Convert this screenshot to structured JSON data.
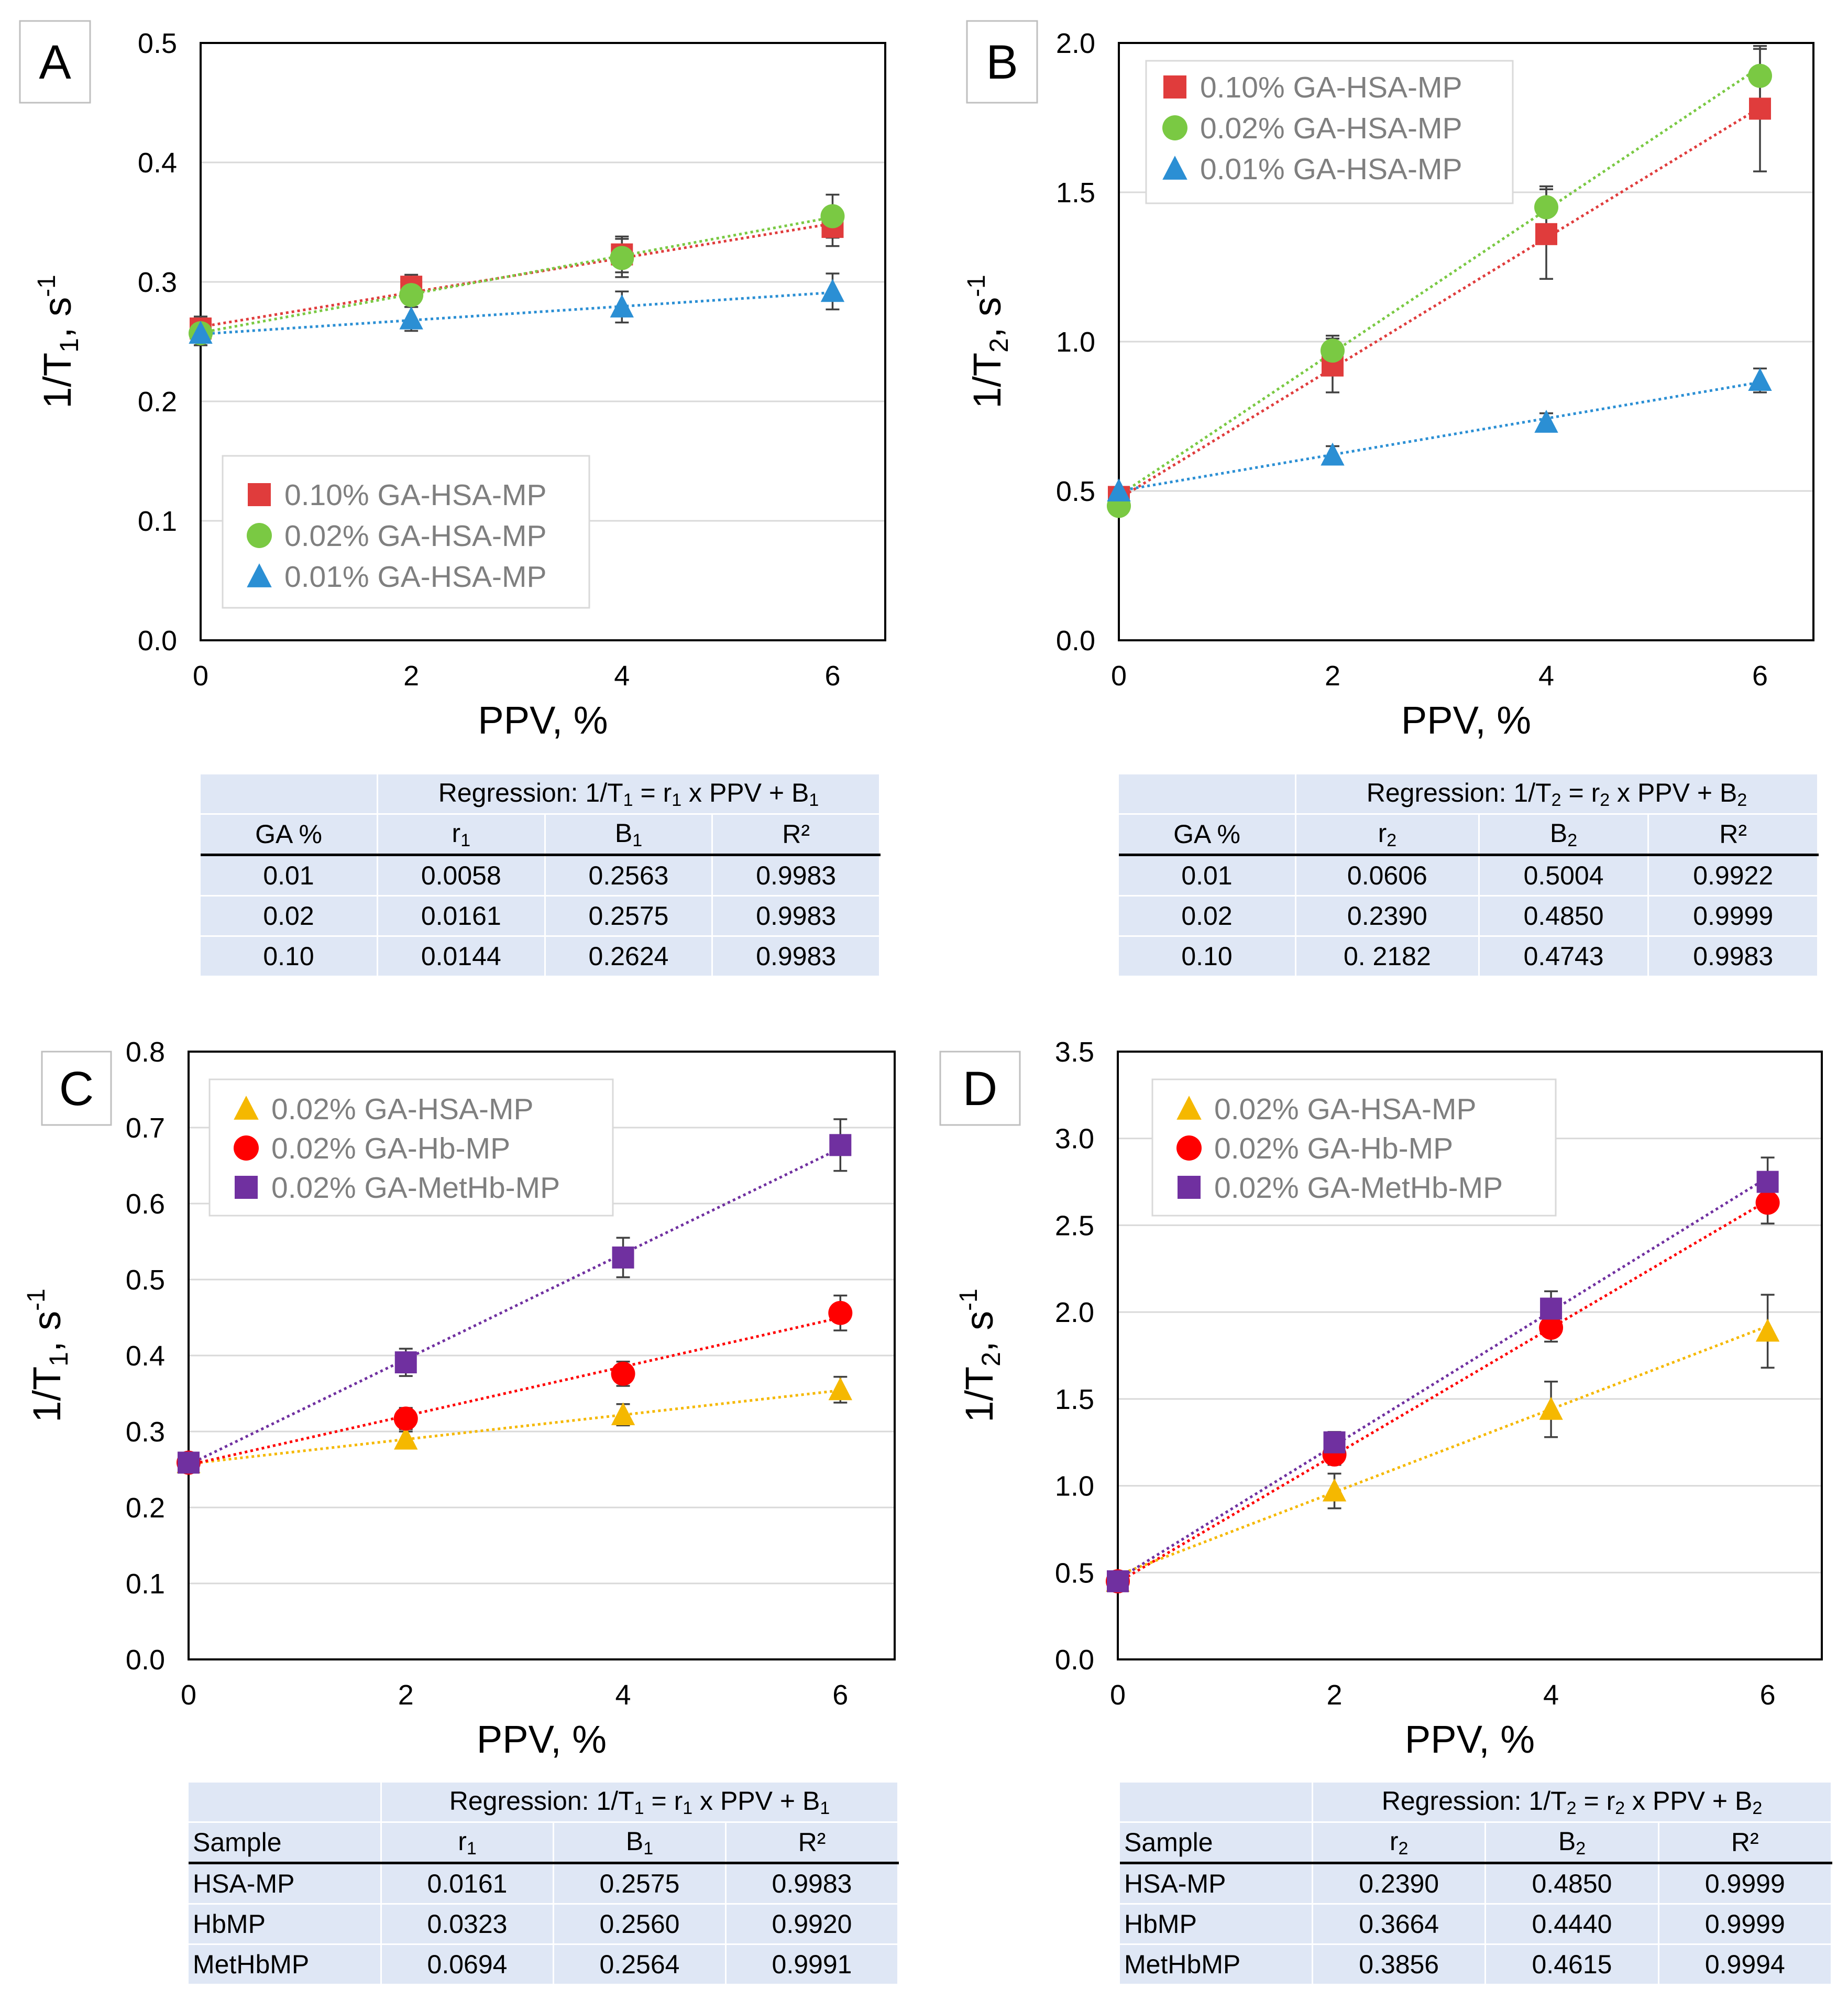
{
  "charts": [
    {
      "panel": "A",
      "legend_position": "bottom-left",
      "error_bars": true,
      "chart_data": {
        "type": "scatter",
        "title": "",
        "xlabel": "PPV, %",
        "ylabel": "1/T1, s-1",
        "ylabel_parts": [
          "1/T",
          "1",
          ", s",
          "-1"
        ],
        "xlim": [
          0,
          6.5
        ],
        "ylim": [
          0,
          0.5
        ],
        "x_ticks": [
          0,
          2,
          4,
          6
        ],
        "y_ticks": [
          "0.0",
          "0.1",
          "0.2",
          "0.3",
          "0.4",
          "0.5"
        ],
        "x": [
          0,
          2,
          4,
          6
        ],
        "series": [
          {
            "name": "0.10% GA-HSA-MP",
            "marker": "square",
            "color": "#e03c3c",
            "values": [
              0.261,
              0.296,
              0.323,
              0.346
            ],
            "errors": [
              0.01,
              0.01,
              0.015,
              0.016
            ],
            "fit": {
              "slope": 0.0144,
              "intercept": 0.2624
            }
          },
          {
            "name": "0.02% GA-HSA-MP",
            "marker": "circle",
            "color": "#7ac943",
            "values": [
              0.257,
              0.289,
              0.32,
              0.355
            ],
            "errors": [
              0.01,
              0.01,
              0.016,
              0.018
            ],
            "fit": {
              "slope": 0.0161,
              "intercept": 0.2575
            }
          },
          {
            "name": "0.01% GA-HSA-MP",
            "marker": "triangle",
            "color": "#2b8fd4",
            "values": [
              0.257,
              0.269,
              0.279,
              0.292
            ],
            "errors": [
              0.01,
              0.01,
              0.013,
              0.015
            ],
            "fit": {
              "slope": 0.0058,
              "intercept": 0.2563
            }
          }
        ]
      }
    },
    {
      "panel": "B",
      "legend_position": "top-left",
      "error_bars": true,
      "chart_data": {
        "type": "scatter",
        "title": "",
        "xlabel": "PPV, %",
        "ylabel": "1/T2, s-1",
        "ylabel_parts": [
          "1/T",
          "2",
          ", s",
          "-1"
        ],
        "xlim": [
          0,
          6.5
        ],
        "ylim": [
          0,
          2.0
        ],
        "x_ticks": [
          0,
          2,
          4,
          6
        ],
        "y_ticks": [
          "0.0",
          "0.5",
          "1.0",
          "1.5",
          "2.0"
        ],
        "x": [
          0,
          2,
          4,
          6
        ],
        "series": [
          {
            "name": "0.10% GA-HSA-MP",
            "marker": "square",
            "color": "#e03c3c",
            "values": [
              0.48,
              0.92,
              1.36,
              1.78
            ],
            "errors": [
              0.02,
              0.09,
              0.15,
              0.21
            ],
            "fit": {
              "slope": 0.2182,
              "intercept": 0.4743
            }
          },
          {
            "name": "0.02% GA-HSA-MP",
            "marker": "circle",
            "color": "#7ac943",
            "values": [
              0.45,
              0.97,
              1.45,
              1.89
            ],
            "errors": [
              0.02,
              0.05,
              0.07,
              0.09
            ],
            "fit": {
              "slope": 0.239,
              "intercept": 0.485
            }
          },
          {
            "name": "0.01% GA-HSA-MP",
            "marker": "triangle",
            "color": "#2b8fd4",
            "values": [
              0.5,
              0.62,
              0.73,
              0.87
            ],
            "errors": [
              0.01,
              0.03,
              0.03,
              0.04
            ],
            "fit": {
              "slope": 0.0606,
              "intercept": 0.5004
            }
          }
        ]
      }
    },
    {
      "panel": "C",
      "legend_position": "top-left",
      "error_bars": true,
      "chart_data": {
        "type": "scatter",
        "title": "",
        "xlabel": "PPV, %",
        "ylabel": "1/T1, s-1",
        "ylabel_parts": [
          "1/T",
          "1",
          ", s",
          "-1"
        ],
        "xlim": [
          0,
          6.5
        ],
        "ylim": [
          0,
          0.8
        ],
        "x_ticks": [
          0,
          2,
          4,
          6
        ],
        "y_ticks": [
          "0.0",
          "0.1",
          "0.2",
          "0.3",
          "0.4",
          "0.5",
          "0.6",
          "0.7",
          "0.8"
        ],
        "x": [
          0,
          2,
          4,
          6
        ],
        "series": [
          {
            "name": "0.02% GA-HSA-MP",
            "marker": "triangle",
            "color": "#f5b800",
            "values": [
              0.259,
              0.29,
              0.322,
              0.355
            ],
            "errors": [
              0.01,
              0.01,
              0.014,
              0.017
            ],
            "fit": {
              "slope": 0.0161,
              "intercept": 0.2575
            }
          },
          {
            "name": "0.02% GA-Hb-MP",
            "marker": "circle",
            "color": "#ff0000",
            "values": [
              0.259,
              0.317,
              0.376,
              0.456
            ],
            "errors": [
              0.01,
              0.014,
              0.016,
              0.023
            ],
            "fit": {
              "slope": 0.0323,
              "intercept": 0.256
            }
          },
          {
            "name": "0.02% GA-MetHb-MP",
            "marker": "square",
            "color": "#7030a0",
            "values": [
              0.259,
              0.391,
              0.529,
              0.677
            ],
            "errors": [
              0.01,
              0.018,
              0.026,
              0.034
            ],
            "fit": {
              "slope": 0.0694,
              "intercept": 0.2564
            }
          }
        ]
      }
    },
    {
      "panel": "D",
      "legend_position": "top-left",
      "error_bars": true,
      "chart_data": {
        "type": "scatter",
        "title": "",
        "xlabel": "PPV, %",
        "ylabel": "1/T2, s-1",
        "ylabel_parts": [
          "1/T",
          "2",
          ", s",
          "-1"
        ],
        "xlim": [
          0,
          6.5
        ],
        "ylim": [
          0,
          3.5
        ],
        "x_ticks": [
          0,
          2,
          4,
          6
        ],
        "y_ticks": [
          "0.0",
          "0.5",
          "1.0",
          "1.5",
          "2.0",
          "2.5",
          "3.0",
          "3.5"
        ],
        "x": [
          0,
          2,
          4,
          6
        ],
        "series": [
          {
            "name": "0.02% GA-HSA-MP",
            "marker": "triangle",
            "color": "#f5b800",
            "values": [
              0.45,
              0.97,
              1.44,
              1.89
            ],
            "errors": [
              0.03,
              0.1,
              0.16,
              0.21
            ],
            "fit": {
              "slope": 0.239,
              "intercept": 0.485
            }
          },
          {
            "name": "0.02% GA-Hb-MP",
            "marker": "circle",
            "color": "#ff0000",
            "values": [
              0.45,
              1.18,
              1.91,
              2.63
            ],
            "errors": [
              0.03,
              0.06,
              0.08,
              0.12
            ],
            "fit": {
              "slope": 0.3664,
              "intercept": 0.444
            }
          },
          {
            "name": "0.02% GA-MetHb-MP",
            "marker": "square",
            "color": "#7030a0",
            "values": [
              0.45,
              1.25,
              2.02,
              2.75
            ],
            "errors": [
              0.03,
              0.06,
              0.1,
              0.14
            ],
            "fit": {
              "slope": 0.3856,
              "intercept": 0.4615
            }
          }
        ]
      }
    }
  ],
  "tables": {
    "A": {
      "title_pre": "Regression: 1/T",
      "title_sub1": "1",
      "title_mid": " = r",
      "title_sub2": "1",
      "title_mid2": " x PPV + B",
      "title_sub3": "1",
      "col0": "GA %",
      "col1": "r",
      "col1_sub": "1",
      "col2": "B",
      "col2_sub": "1",
      "col3": "R²",
      "rows": [
        [
          "0.01",
          "0.0058",
          "0.2563",
          "0.9983"
        ],
        [
          "0.02",
          "0.0161",
          "0.2575",
          "0.9983"
        ],
        [
          "0.10",
          "0.0144",
          "0.2624",
          "0.9983"
        ]
      ]
    },
    "B": {
      "title_pre": "Regression: 1/T",
      "title_sub1": "2",
      "title_mid": " = r",
      "title_sub2": "2",
      "title_mid2": " x PPV + B",
      "title_sub3": "2",
      "col0": "GA %",
      "col1": "r",
      "col1_sub": "2",
      "col2": "B",
      "col2_sub": "2",
      "col3": "R²",
      "rows": [
        [
          "0.01",
          "0.0606",
          "0.5004",
          "0.9922"
        ],
        [
          "0.02",
          "0.2390",
          "0.4850",
          "0.9999"
        ],
        [
          "0.10",
          "0. 2182",
          "0.4743",
          "0.9983"
        ]
      ]
    },
    "C": {
      "title_pre": "Regression: 1/T",
      "title_sub1": "1",
      "title_mid": " = r",
      "title_sub2": "1",
      "title_mid2": " x PPV + B",
      "title_sub3": "1",
      "col0": "Sample",
      "col1": "r",
      "col1_sub": "1",
      "col2": "B",
      "col2_sub": "1",
      "col3": "R²",
      "rows": [
        [
          "HSA-MP",
          "0.0161",
          "0.2575",
          "0.9983"
        ],
        [
          "HbMP",
          "0.0323",
          "0.2560",
          "0.9920"
        ],
        [
          "MetHbMP",
          "0.0694",
          "0.2564",
          "0.9991"
        ]
      ]
    },
    "D": {
      "title_pre": "Regression: 1/T",
      "title_sub1": "2",
      "title_mid": " = r",
      "title_sub2": "2",
      "title_mid2": " x PPV + B",
      "title_sub3": "2",
      "col0": "Sample",
      "col1": "r",
      "col1_sub": "2",
      "col2": "B",
      "col2_sub": "2",
      "col3": "R²",
      "rows": [
        [
          "HSA-MP",
          "0.2390",
          "0.4850",
          "0.9999"
        ],
        [
          "HbMP",
          "0.3664",
          "0.4440",
          "0.9999"
        ],
        [
          "MetHbMP",
          "0.3856",
          "0.4615",
          "0.9994"
        ]
      ]
    }
  }
}
